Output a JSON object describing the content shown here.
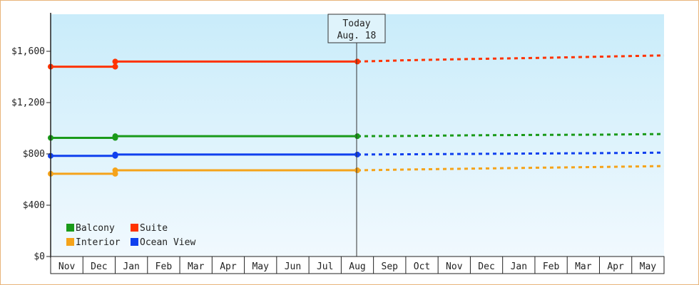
{
  "chart_data": {
    "type": "line",
    "x_labels": [
      "Nov",
      "Dec",
      "Jan",
      "Feb",
      "Mar",
      "Apr",
      "May",
      "Jun",
      "Jul",
      "Aug",
      "Sep",
      "Oct",
      "Nov",
      "Dec",
      "Jan",
      "Feb",
      "Mar",
      "Apr",
      "May"
    ],
    "y_ticks": [
      "$0",
      "$400",
      "$800",
      "$1,200",
      "$1,600"
    ],
    "ylim": [
      0,
      1600
    ],
    "today_marker": {
      "line1": "Today",
      "line2": "Aug. 18"
    },
    "grid": false,
    "legend_position": "bottom-left",
    "series": [
      {
        "name": "Balcony",
        "color": "#1a9a1a",
        "history": [
          [
            0,
            925
          ],
          [
            2,
            925
          ],
          [
            2,
            938
          ],
          [
            9.5,
            938
          ]
        ],
        "forecast": [
          [
            9.5,
            938
          ],
          [
            11,
            940
          ],
          [
            13,
            945
          ],
          [
            15,
            948
          ],
          [
            17,
            950
          ],
          [
            19,
            955
          ]
        ]
      },
      {
        "name": "Suite",
        "color": "#ff3300",
        "history": [
          [
            0,
            1480
          ],
          [
            2,
            1480
          ],
          [
            2,
            1520
          ],
          [
            9.5,
            1520
          ]
        ],
        "forecast": [
          [
            9.5,
            1520
          ],
          [
            11,
            1530
          ],
          [
            13,
            1540
          ],
          [
            15,
            1548
          ],
          [
            17,
            1558
          ],
          [
            19,
            1568
          ]
        ]
      },
      {
        "name": "Interior",
        "color": "#f5a31a",
        "history": [
          [
            0,
            645
          ],
          [
            2,
            645
          ],
          [
            2,
            672
          ],
          [
            9.5,
            672
          ]
        ],
        "forecast": [
          [
            9.5,
            672
          ],
          [
            11,
            678
          ],
          [
            13,
            685
          ],
          [
            15,
            692
          ],
          [
            17,
            698
          ],
          [
            19,
            705
          ]
        ]
      },
      {
        "name": "Ocean View",
        "color": "#1040ee",
        "history": [
          [
            0,
            785
          ],
          [
            2,
            785
          ],
          [
            2,
            795
          ],
          [
            9.5,
            795
          ]
        ],
        "forecast": [
          [
            9.5,
            795
          ],
          [
            11,
            797
          ],
          [
            13,
            800
          ],
          [
            15,
            803
          ],
          [
            17,
            806
          ],
          [
            19,
            810
          ]
        ]
      }
    ]
  }
}
